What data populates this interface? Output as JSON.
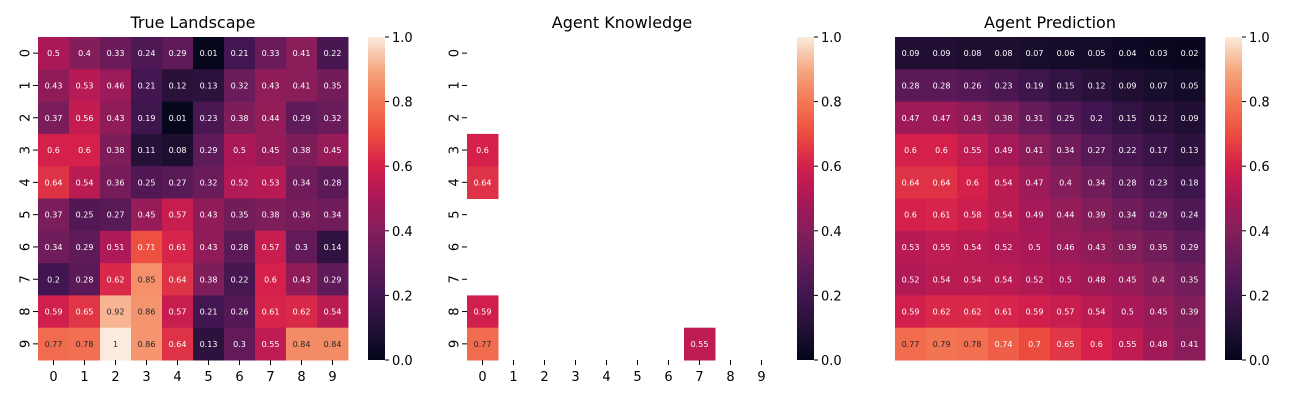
{
  "colorbar_ticks": [
    "0.0",
    "0.2",
    "0.4",
    "0.6",
    "0.8",
    "1.0"
  ],
  "chart_data": [
    {
      "type": "heatmap",
      "title": "True Landscape",
      "rows": [
        "0",
        "1",
        "2",
        "3",
        "4",
        "5",
        "6",
        "7",
        "8",
        "9"
      ],
      "cols": [
        "0",
        "1",
        "2",
        "3",
        "4",
        "5",
        "6",
        "7",
        "8",
        "9"
      ],
      "vmin": 0,
      "vmax": 1,
      "colormap": "rocket",
      "values": [
        [
          0.5,
          0.4,
          0.33,
          0.24,
          0.29,
          0.01,
          0.21,
          0.33,
          0.41,
          0.22
        ],
        [
          0.43,
          0.53,
          0.46,
          0.21,
          0.12,
          0.13,
          0.32,
          0.43,
          0.41,
          0.35
        ],
        [
          0.37,
          0.56,
          0.43,
          0.19,
          0.01,
          0.23,
          0.38,
          0.44,
          0.29,
          0.32
        ],
        [
          0.6,
          0.6,
          0.38,
          0.11,
          0.08,
          0.29,
          0.5,
          0.45,
          0.38,
          0.45
        ],
        [
          0.64,
          0.54,
          0.36,
          0.25,
          0.27,
          0.32,
          0.52,
          0.53,
          0.34,
          0.28
        ],
        [
          0.37,
          0.25,
          0.27,
          0.45,
          0.57,
          0.43,
          0.35,
          0.38,
          0.36,
          0.34
        ],
        [
          0.34,
          0.29,
          0.51,
          0.71,
          0.61,
          0.43,
          0.28,
          0.57,
          0.3,
          0.14
        ],
        [
          0.2,
          0.28,
          0.62,
          0.85,
          0.64,
          0.38,
          0.22,
          0.6,
          0.43,
          0.29
        ],
        [
          0.59,
          0.65,
          0.92,
          0.86,
          0.57,
          0.21,
          0.26,
          0.61,
          0.62,
          0.54
        ],
        [
          0.77,
          0.78,
          1,
          0.86,
          0.64,
          0.13,
          0.3,
          0.55,
          0.84,
          0.84
        ]
      ]
    },
    {
      "type": "heatmap",
      "title": "Agent Knowledge",
      "rows": [
        "0",
        "1",
        "2",
        "3",
        "4",
        "5",
        "6",
        "7",
        "8",
        "9"
      ],
      "cols": [
        "0",
        "1",
        "2",
        "3",
        "4",
        "5",
        "6",
        "7",
        "8",
        "9"
      ],
      "vmin": 0,
      "vmax": 1,
      "colormap": "rocket",
      "values": [
        [
          null,
          null,
          null,
          null,
          null,
          null,
          null,
          null,
          null,
          null
        ],
        [
          null,
          null,
          null,
          null,
          null,
          null,
          null,
          null,
          null,
          null
        ],
        [
          null,
          null,
          null,
          null,
          null,
          null,
          null,
          null,
          null,
          null
        ],
        [
          0.6,
          null,
          null,
          null,
          null,
          null,
          null,
          null,
          null,
          null
        ],
        [
          0.64,
          null,
          null,
          null,
          null,
          null,
          null,
          null,
          null,
          null
        ],
        [
          null,
          null,
          null,
          null,
          null,
          null,
          null,
          null,
          null,
          null
        ],
        [
          null,
          null,
          null,
          null,
          null,
          null,
          null,
          null,
          null,
          null
        ],
        [
          null,
          null,
          null,
          null,
          null,
          null,
          null,
          null,
          null,
          null
        ],
        [
          0.59,
          null,
          null,
          null,
          null,
          null,
          null,
          null,
          null,
          null
        ],
        [
          0.77,
          null,
          null,
          null,
          null,
          null,
          null,
          0.55,
          null,
          null
        ]
      ]
    },
    {
      "type": "heatmap",
      "title": "Agent Prediction",
      "rows": [
        "0",
        "1",
        "2",
        "3",
        "4",
        "5",
        "6",
        "7",
        "8",
        "9"
      ],
      "cols": [
        "0",
        "1",
        "2",
        "3",
        "4",
        "5",
        "6",
        "7",
        "8",
        "9"
      ],
      "vmin": 0,
      "vmax": 1,
      "colormap": "rocket",
      "values": [
        [
          0.09,
          0.09,
          0.08,
          0.08,
          0.07,
          0.06,
          0.05,
          0.04,
          0.03,
          0.02
        ],
        [
          0.28,
          0.28,
          0.26,
          0.23,
          0.19,
          0.15,
          0.12,
          0.09,
          0.07,
          0.05
        ],
        [
          0.47,
          0.47,
          0.43,
          0.38,
          0.31,
          0.25,
          0.2,
          0.15,
          0.12,
          0.09
        ],
        [
          0.6,
          0.6,
          0.55,
          0.49,
          0.41,
          0.34,
          0.27,
          0.22,
          0.17,
          0.13
        ],
        [
          0.64,
          0.64,
          0.6,
          0.54,
          0.47,
          0.4,
          0.34,
          0.28,
          0.23,
          0.18
        ],
        [
          0.6,
          0.61,
          0.58,
          0.54,
          0.49,
          0.44,
          0.39,
          0.34,
          0.29,
          0.24
        ],
        [
          0.53,
          0.55,
          0.54,
          0.52,
          0.5,
          0.46,
          0.43,
          0.39,
          0.35,
          0.29
        ],
        [
          0.52,
          0.54,
          0.54,
          0.54,
          0.52,
          0.5,
          0.48,
          0.45,
          0.4,
          0.35
        ],
        [
          0.59,
          0.62,
          0.62,
          0.61,
          0.59,
          0.57,
          0.54,
          0.5,
          0.45,
          0.39
        ],
        [
          0.77,
          0.79,
          0.78,
          0.74,
          0.7,
          0.65,
          0.6,
          0.55,
          0.48,
          0.41
        ]
      ],
      "show_tick_labels": false
    }
  ]
}
